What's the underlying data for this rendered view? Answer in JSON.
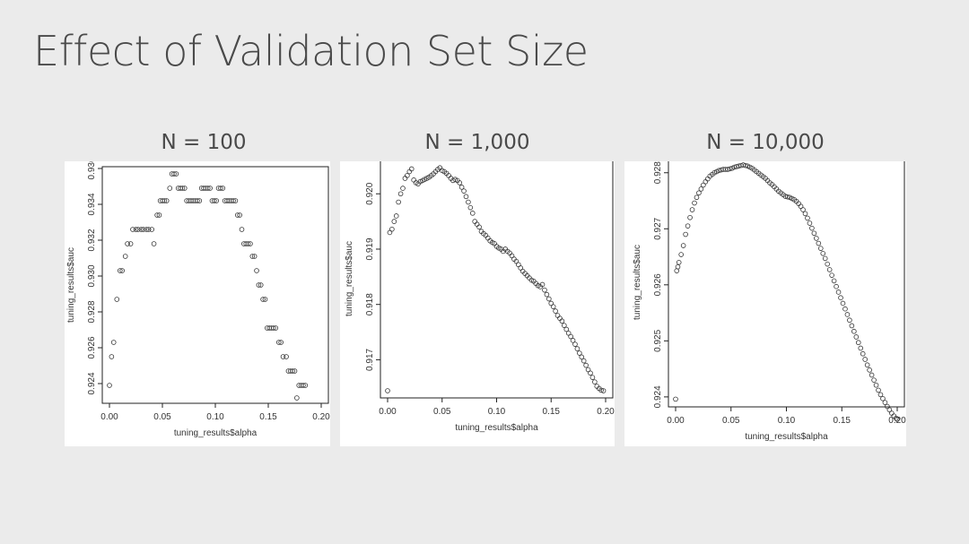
{
  "slide": {
    "title": "Effect of Validation Set Size"
  },
  "panels": [
    {
      "heading": "N = 100"
    },
    {
      "heading": "N = 1,000"
    },
    {
      "heading": "N = 10,000"
    }
  ],
  "chart_data": [
    {
      "type": "scatter",
      "title": "",
      "xlabel": "tuning_results$alpha",
      "ylabel": "tuning_results$auc",
      "xlim": [
        0,
        0.2
      ],
      "ylim": [
        0.9233,
        0.9357
      ],
      "xticks": [
        0.0,
        0.05,
        0.1,
        0.15,
        0.2
      ],
      "xtick_labels": [
        "0.00",
        "0.05",
        "0.10",
        "0.15",
        "0.20"
      ],
      "yticks": [
        0.924,
        0.926,
        0.928,
        0.93,
        0.932,
        0.934,
        0.936
      ],
      "ytick_labels": [
        "0.924",
        "0.926",
        "0.928",
        "0.930",
        "0.932",
        "0.934",
        "0.936"
      ],
      "grid": false,
      "points": [
        [
          0.0,
          0.9239
        ],
        [
          0.002,
          0.9255
        ],
        [
          0.004,
          0.9263
        ],
        [
          0.007,
          0.9287
        ],
        [
          0.01,
          0.9303
        ],
        [
          0.012,
          0.9303
        ],
        [
          0.015,
          0.9311
        ],
        [
          0.017,
          0.9318
        ],
        [
          0.02,
          0.9318
        ],
        [
          0.022,
          0.9326
        ],
        [
          0.025,
          0.9326
        ],
        [
          0.027,
          0.9326
        ],
        [
          0.03,
          0.9326
        ],
        [
          0.032,
          0.9326
        ],
        [
          0.035,
          0.9326
        ],
        [
          0.037,
          0.9326
        ],
        [
          0.04,
          0.9326
        ],
        [
          0.042,
          0.9318
        ],
        [
          0.045,
          0.9334
        ],
        [
          0.047,
          0.9334
        ],
        [
          0.048,
          0.9342
        ],
        [
          0.05,
          0.9342
        ],
        [
          0.052,
          0.9342
        ],
        [
          0.054,
          0.9342
        ],
        [
          0.057,
          0.9349
        ],
        [
          0.059,
          0.9357
        ],
        [
          0.061,
          0.9357
        ],
        [
          0.063,
          0.9357
        ],
        [
          0.065,
          0.9349
        ],
        [
          0.067,
          0.9349
        ],
        [
          0.069,
          0.9349
        ],
        [
          0.071,
          0.9349
        ],
        [
          0.073,
          0.9342
        ],
        [
          0.075,
          0.9342
        ],
        [
          0.077,
          0.9342
        ],
        [
          0.079,
          0.9342
        ],
        [
          0.081,
          0.9342
        ],
        [
          0.083,
          0.9342
        ],
        [
          0.085,
          0.9342
        ],
        [
          0.087,
          0.9349
        ],
        [
          0.089,
          0.9349
        ],
        [
          0.091,
          0.9349
        ],
        [
          0.093,
          0.9349
        ],
        [
          0.095,
          0.9349
        ],
        [
          0.097,
          0.9342
        ],
        [
          0.099,
          0.9342
        ],
        [
          0.101,
          0.9342
        ],
        [
          0.103,
          0.9349
        ],
        [
          0.105,
          0.9349
        ],
        [
          0.107,
          0.9349
        ],
        [
          0.109,
          0.9342
        ],
        [
          0.111,
          0.9342
        ],
        [
          0.113,
          0.9342
        ],
        [
          0.115,
          0.9342
        ],
        [
          0.117,
          0.9342
        ],
        [
          0.119,
          0.9342
        ],
        [
          0.121,
          0.9334
        ],
        [
          0.123,
          0.9334
        ],
        [
          0.125,
          0.9326
        ],
        [
          0.127,
          0.9318
        ],
        [
          0.129,
          0.9318
        ],
        [
          0.131,
          0.9318
        ],
        [
          0.133,
          0.9318
        ],
        [
          0.135,
          0.9311
        ],
        [
          0.137,
          0.9311
        ],
        [
          0.139,
          0.9303
        ],
        [
          0.141,
          0.9295
        ],
        [
          0.143,
          0.9295
        ],
        [
          0.145,
          0.9287
        ],
        [
          0.147,
          0.9287
        ],
        [
          0.149,
          0.9271
        ],
        [
          0.151,
          0.9271
        ],
        [
          0.153,
          0.9271
        ],
        [
          0.155,
          0.9271
        ],
        [
          0.157,
          0.9271
        ],
        [
          0.16,
          0.9263
        ],
        [
          0.162,
          0.9263
        ],
        [
          0.164,
          0.9255
        ],
        [
          0.167,
          0.9255
        ],
        [
          0.169,
          0.9247
        ],
        [
          0.171,
          0.9247
        ],
        [
          0.173,
          0.9247
        ],
        [
          0.175,
          0.9247
        ],
        [
          0.177,
          0.9232
        ],
        [
          0.179,
          0.9239
        ],
        [
          0.181,
          0.9239
        ],
        [
          0.183,
          0.9239
        ],
        [
          0.185,
          0.9239
        ]
      ]
    },
    {
      "type": "scatter",
      "title": "",
      "xlabel": "tuning_results$alpha",
      "ylabel": "tuning_results$auc",
      "xlim": [
        0,
        0.2
      ],
      "ylim": [
        0.91644,
        0.92049
      ],
      "xticks": [
        0.0,
        0.05,
        0.1,
        0.15,
        0.2
      ],
      "xtick_labels": [
        "0.00",
        "0.05",
        "0.10",
        "0.15",
        "0.20"
      ],
      "yticks": [
        0.917,
        0.918,
        0.919,
        0.92
      ],
      "ytick_labels": [
        "0.917",
        "0.918",
        "0.919",
        "0.920"
      ],
      "grid": false,
      "points": [
        [
          0.0,
          0.91644
        ],
        [
          0.002,
          0.9193
        ],
        [
          0.004,
          0.91936
        ],
        [
          0.006,
          0.9195
        ],
        [
          0.008,
          0.9196
        ],
        [
          0.01,
          0.91985
        ],
        [
          0.012,
          0.92
        ],
        [
          0.014,
          0.9201
        ],
        [
          0.016,
          0.92028
        ],
        [
          0.018,
          0.92033
        ],
        [
          0.02,
          0.9204
        ],
        [
          0.022,
          0.92045
        ],
        [
          0.024,
          0.92025
        ],
        [
          0.026,
          0.9202
        ],
        [
          0.028,
          0.92018
        ],
        [
          0.03,
          0.92022
        ],
        [
          0.032,
          0.92024
        ],
        [
          0.034,
          0.92026
        ],
        [
          0.036,
          0.92028
        ],
        [
          0.038,
          0.9203
        ],
        [
          0.04,
          0.92033
        ],
        [
          0.042,
          0.92036
        ],
        [
          0.044,
          0.9204
        ],
        [
          0.046,
          0.92044
        ],
        [
          0.048,
          0.92047
        ],
        [
          0.05,
          0.92042
        ],
        [
          0.052,
          0.9204
        ],
        [
          0.054,
          0.92037
        ],
        [
          0.056,
          0.92033
        ],
        [
          0.058,
          0.92028
        ],
        [
          0.06,
          0.92024
        ],
        [
          0.062,
          0.92026
        ],
        [
          0.064,
          0.92024
        ],
        [
          0.066,
          0.9202
        ],
        [
          0.068,
          0.92012
        ],
        [
          0.07,
          0.92005
        ],
        [
          0.072,
          0.91995
        ],
        [
          0.074,
          0.91985
        ],
        [
          0.076,
          0.91975
        ],
        [
          0.078,
          0.91965
        ],
        [
          0.08,
          0.9195
        ],
        [
          0.082,
          0.91945
        ],
        [
          0.084,
          0.9194
        ],
        [
          0.086,
          0.91932
        ],
        [
          0.088,
          0.91928
        ],
        [
          0.09,
          0.91925
        ],
        [
          0.092,
          0.9192
        ],
        [
          0.094,
          0.91915
        ],
        [
          0.096,
          0.91912
        ],
        [
          0.098,
          0.9191
        ],
        [
          0.1,
          0.91905
        ],
        [
          0.102,
          0.91902
        ],
        [
          0.104,
          0.919
        ],
        [
          0.106,
          0.91896
        ],
        [
          0.108,
          0.919
        ],
        [
          0.11,
          0.91896
        ],
        [
          0.112,
          0.91893
        ],
        [
          0.114,
          0.91888
        ],
        [
          0.116,
          0.91882
        ],
        [
          0.118,
          0.91878
        ],
        [
          0.12,
          0.91872
        ],
        [
          0.122,
          0.91866
        ],
        [
          0.124,
          0.9186
        ],
        [
          0.126,
          0.91856
        ],
        [
          0.128,
          0.91852
        ],
        [
          0.13,
          0.91848
        ],
        [
          0.132,
          0.91844
        ],
        [
          0.134,
          0.91842
        ],
        [
          0.136,
          0.91838
        ],
        [
          0.138,
          0.91834
        ],
        [
          0.14,
          0.91832
        ],
        [
          0.142,
          0.91836
        ],
        [
          0.144,
          0.91826
        ],
        [
          0.146,
          0.91818
        ],
        [
          0.148,
          0.9181
        ],
        [
          0.15,
          0.91802
        ],
        [
          0.152,
          0.91796
        ],
        [
          0.154,
          0.91788
        ],
        [
          0.156,
          0.9178
        ],
        [
          0.158,
          0.91775
        ],
        [
          0.16,
          0.9177
        ],
        [
          0.162,
          0.91762
        ],
        [
          0.164,
          0.91755
        ],
        [
          0.166,
          0.91748
        ],
        [
          0.168,
          0.91742
        ],
        [
          0.17,
          0.91735
        ],
        [
          0.172,
          0.91728
        ],
        [
          0.174,
          0.9172
        ],
        [
          0.176,
          0.91712
        ],
        [
          0.178,
          0.91705
        ],
        [
          0.18,
          0.91698
        ],
        [
          0.182,
          0.9169
        ],
        [
          0.184,
          0.91682
        ],
        [
          0.186,
          0.91676
        ],
        [
          0.188,
          0.91668
        ],
        [
          0.19,
          0.9166
        ],
        [
          0.192,
          0.91652
        ],
        [
          0.194,
          0.91648
        ],
        [
          0.196,
          0.91645
        ],
        [
          0.198,
          0.91644
        ]
      ]
    },
    {
      "type": "scatter",
      "title": "",
      "xlabel": "tuning_results$alpha",
      "ylabel": "tuning_results$auc",
      "xlim": [
        0,
        0.2
      ],
      "ylim": [
        0.92395,
        0.92814
      ],
      "xticks": [
        0.0,
        0.05,
        0.1,
        0.15,
        0.2
      ],
      "xtick_labels": [
        "0.00",
        "0.05",
        "0.10",
        "0.15",
        "0.20"
      ],
      "yticks": [
        0.924,
        0.925,
        0.926,
        0.927,
        0.928
      ],
      "ytick_labels": [
        "0.924",
        "0.925",
        "0.926",
        "0.927",
        "0.928"
      ],
      "grid": false,
      "points": [
        [
          0.0,
          0.92396
        ],
        [
          0.001,
          0.92625
        ],
        [
          0.002,
          0.92632
        ],
        [
          0.003,
          0.9264
        ],
        [
          0.005,
          0.92654
        ],
        [
          0.007,
          0.9267
        ],
        [
          0.009,
          0.9269
        ],
        [
          0.011,
          0.92705
        ],
        [
          0.013,
          0.9272
        ],
        [
          0.015,
          0.92734
        ],
        [
          0.017,
          0.92746
        ],
        [
          0.019,
          0.92756
        ],
        [
          0.021,
          0.92764
        ],
        [
          0.023,
          0.92771
        ],
        [
          0.025,
          0.92778
        ],
        [
          0.027,
          0.92784
        ],
        [
          0.029,
          0.92789
        ],
        [
          0.031,
          0.92794
        ],
        [
          0.033,
          0.92797
        ],
        [
          0.035,
          0.928
        ],
        [
          0.037,
          0.92802
        ],
        [
          0.039,
          0.92804
        ],
        [
          0.041,
          0.92805
        ],
        [
          0.043,
          0.92806
        ],
        [
          0.045,
          0.92806
        ],
        [
          0.047,
          0.92806
        ],
        [
          0.049,
          0.92807
        ],
        [
          0.051,
          0.92808
        ],
        [
          0.053,
          0.9281
        ],
        [
          0.055,
          0.92811
        ],
        [
          0.057,
          0.92812
        ],
        [
          0.059,
          0.92813
        ],
        [
          0.061,
          0.92814
        ],
        [
          0.063,
          0.92813
        ],
        [
          0.065,
          0.92812
        ],
        [
          0.067,
          0.9281
        ],
        [
          0.069,
          0.92808
        ],
        [
          0.071,
          0.92805
        ],
        [
          0.073,
          0.92802
        ],
        [
          0.075,
          0.92799
        ],
        [
          0.077,
          0.92796
        ],
        [
          0.079,
          0.92793
        ],
        [
          0.081,
          0.9279
        ],
        [
          0.083,
          0.92786
        ],
        [
          0.085,
          0.92782
        ],
        [
          0.087,
          0.92779
        ],
        [
          0.089,
          0.92775
        ],
        [
          0.091,
          0.92771
        ],
        [
          0.093,
          0.92767
        ],
        [
          0.095,
          0.92764
        ],
        [
          0.097,
          0.92761
        ],
        [
          0.099,
          0.92758
        ],
        [
          0.101,
          0.92757
        ],
        [
          0.103,
          0.92756
        ],
        [
          0.105,
          0.92754
        ],
        [
          0.107,
          0.92752
        ],
        [
          0.109,
          0.92749
        ],
        [
          0.111,
          0.92745
        ],
        [
          0.113,
          0.9274
        ],
        [
          0.115,
          0.92734
        ],
        [
          0.117,
          0.92727
        ],
        [
          0.119,
          0.92719
        ],
        [
          0.121,
          0.9271
        ],
        [
          0.123,
          0.92701
        ],
        [
          0.125,
          0.92692
        ],
        [
          0.127,
          0.92683
        ],
        [
          0.129,
          0.92674
        ],
        [
          0.131,
          0.92665
        ],
        [
          0.133,
          0.92656
        ],
        [
          0.135,
          0.92647
        ],
        [
          0.137,
          0.92637
        ],
        [
          0.139,
          0.92627
        ],
        [
          0.141,
          0.92617
        ],
        [
          0.143,
          0.92607
        ],
        [
          0.145,
          0.92597
        ],
        [
          0.147,
          0.92587
        ],
        [
          0.149,
          0.92577
        ],
        [
          0.151,
          0.92567
        ],
        [
          0.153,
          0.92557
        ],
        [
          0.155,
          0.92547
        ],
        [
          0.157,
          0.92537
        ],
        [
          0.159,
          0.92527
        ],
        [
          0.161,
          0.92517
        ],
        [
          0.163,
          0.92507
        ],
        [
          0.165,
          0.92497
        ],
        [
          0.167,
          0.92487
        ],
        [
          0.169,
          0.92477
        ],
        [
          0.171,
          0.92467
        ],
        [
          0.173,
          0.92457
        ],
        [
          0.175,
          0.92448
        ],
        [
          0.177,
          0.92439
        ],
        [
          0.179,
          0.9243
        ],
        [
          0.181,
          0.92421
        ],
        [
          0.183,
          0.92412
        ],
        [
          0.185,
          0.92404
        ],
        [
          0.187,
          0.92397
        ],
        [
          0.189,
          0.9239
        ],
        [
          0.191,
          0.92383
        ],
        [
          0.193,
          0.92377
        ],
        [
          0.195,
          0.92371
        ],
        [
          0.197,
          0.92366
        ],
        [
          0.199,
          0.92362
        ],
        [
          0.2,
          0.9236
        ]
      ]
    }
  ]
}
